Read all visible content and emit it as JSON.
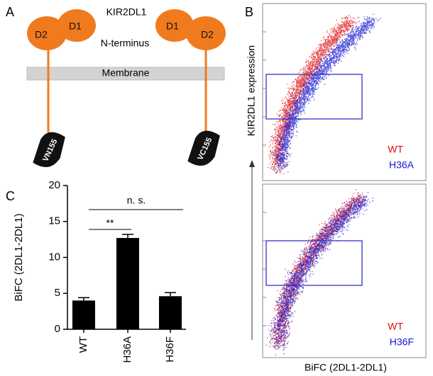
{
  "panel_labels": [
    "A",
    "B",
    "C"
  ],
  "diagram": {
    "title": "KIR2DL1",
    "n_terminus": "N-terminus",
    "membrane": "Membrane",
    "domains": [
      "D1",
      "D2"
    ],
    "tags": [
      "VN155",
      "VC155"
    ]
  },
  "flow": {
    "y_label": "KIR2DL1 expression",
    "x_label": "BiFC (2DL1-2DL1)",
    "plots": [
      {
        "legend": [
          "WT",
          "H36A"
        ]
      },
      {
        "legend": [
          "WT",
          "H36F"
        ]
      }
    ]
  },
  "chart_data": {
    "type": "bar",
    "ylabel": "BiFC (2DL1-2DL1)",
    "categories": [
      "WT",
      "H36A",
      "H36F"
    ],
    "values": [
      4.0,
      12.7,
      4.6
    ],
    "errors": [
      0.4,
      0.5,
      0.5
    ],
    "color": "#000000",
    "ylim": [
      0,
      20
    ],
    "yticks": [
      0,
      5,
      10,
      15,
      20
    ],
    "annotations": [
      "n. s.",
      "**"
    ]
  }
}
